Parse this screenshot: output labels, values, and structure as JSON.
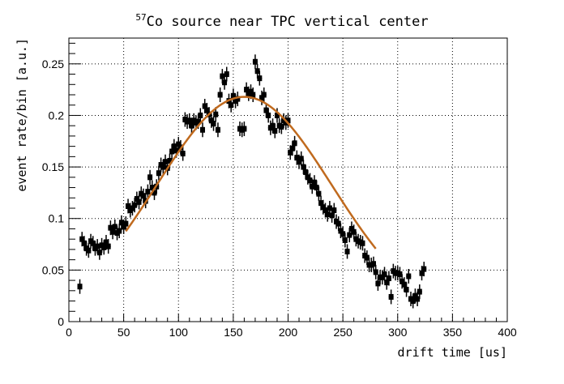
{
  "chart_data": {
    "type": "scatter",
    "title": {
      "superscript": "57",
      "text": "Co source near TPC vertical center"
    },
    "xlabel": "drift time [us]",
    "ylabel": "event rate/bin [a.u.]",
    "xlim": [
      0,
      400
    ],
    "ylim": [
      0,
      0.275
    ],
    "xticks": [
      "0",
      "50",
      "100",
      "150",
      "200",
      "250",
      "300",
      "350",
      "400"
    ],
    "yticks": [
      "0",
      "0.05",
      "0.1",
      "0.15",
      "0.2",
      "0.25"
    ],
    "grid": true,
    "marker_color": "#000000",
    "fit_color": "#c06a1e",
    "series": [
      {
        "points": [
          [
            10,
            0.034
          ],
          [
            12,
            0.08
          ],
          [
            14,
            0.076
          ],
          [
            16,
            0.071
          ],
          [
            18,
            0.069
          ],
          [
            20,
            0.078
          ],
          [
            22,
            0.076
          ],
          [
            24,
            0.071
          ],
          [
            26,
            0.073
          ],
          [
            28,
            0.067
          ],
          [
            30,
            0.074
          ],
          [
            32,
            0.072
          ],
          [
            34,
            0.077
          ],
          [
            36,
            0.073
          ],
          [
            38,
            0.091
          ],
          [
            40,
            0.087
          ],
          [
            42,
            0.092
          ],
          [
            44,
            0.086
          ],
          [
            46,
            0.088
          ],
          [
            48,
            0.096
          ],
          [
            50,
            0.092
          ],
          [
            52,
            0.095
          ],
          [
            54,
            0.112
          ],
          [
            56,
            0.108
          ],
          [
            58,
            0.11
          ],
          [
            60,
            0.113
          ],
          [
            62,
            0.119
          ],
          [
            64,
            0.116
          ],
          [
            66,
            0.124
          ],
          [
            68,
            0.122
          ],
          [
            70,
            0.117
          ],
          [
            72,
            0.126
          ],
          [
            74,
            0.14
          ],
          [
            76,
            0.13
          ],
          [
            78,
            0.125
          ],
          [
            80,
            0.131
          ],
          [
            82,
            0.144
          ],
          [
            84,
            0.152
          ],
          [
            86,
            0.15
          ],
          [
            88,
            0.155
          ],
          [
            90,
            0.149
          ],
          [
            92,
            0.156
          ],
          [
            94,
            0.165
          ],
          [
            96,
            0.17
          ],
          [
            98,
            0.166
          ],
          [
            100,
            0.172
          ],
          [
            102,
            0.169
          ],
          [
            104,
            0.163
          ],
          [
            106,
            0.196
          ],
          [
            108,
            0.194
          ],
          [
            110,
            0.195
          ],
          [
            112,
            0.19
          ],
          [
            114,
            0.195
          ],
          [
            116,
            0.193
          ],
          [
            118,
            0.194
          ],
          [
            120,
            0.2
          ],
          [
            122,
            0.186
          ],
          [
            124,
            0.209
          ],
          [
            126,
            0.205
          ],
          [
            128,
            0.201
          ],
          [
            130,
            0.195
          ],
          [
            132,
            0.192
          ],
          [
            134,
            0.201
          ],
          [
            136,
            0.186
          ],
          [
            138,
            0.22
          ],
          [
            140,
            0.238
          ],
          [
            142,
            0.232
          ],
          [
            144,
            0.24
          ],
          [
            146,
            0.214
          ],
          [
            148,
            0.21
          ],
          [
            150,
            0.219
          ],
          [
            152,
            0.214
          ],
          [
            154,
            0.216
          ],
          [
            156,
            0.187
          ],
          [
            158,
            0.186
          ],
          [
            160,
            0.187
          ],
          [
            162,
            0.225
          ],
          [
            164,
            0.221
          ],
          [
            166,
            0.223
          ],
          [
            168,
            0.22
          ],
          [
            170,
            0.252
          ],
          [
            172,
            0.243
          ],
          [
            174,
            0.236
          ],
          [
            176,
            0.217
          ],
          [
            178,
            0.22
          ],
          [
            180,
            0.205
          ],
          [
            182,
            0.2
          ],
          [
            184,
            0.188
          ],
          [
            186,
            0.19
          ],
          [
            188,
            0.185
          ],
          [
            190,
            0.2
          ],
          [
            192,
            0.19
          ],
          [
            194,
            0.189
          ],
          [
            196,
            0.195
          ],
          [
            198,
            0.193
          ],
          [
            200,
            0.195
          ],
          [
            202,
            0.164
          ],
          [
            204,
            0.168
          ],
          [
            206,
            0.173
          ],
          [
            208,
            0.159
          ],
          [
            210,
            0.155
          ],
          [
            212,
            0.158
          ],
          [
            214,
            0.15
          ],
          [
            216,
            0.145
          ],
          [
            218,
            0.14
          ],
          [
            220,
            0.137
          ],
          [
            222,
            0.131
          ],
          [
            224,
            0.135
          ],
          [
            226,
            0.13
          ],
          [
            228,
            0.124
          ],
          [
            230,
            0.115
          ],
          [
            232,
            0.111
          ],
          [
            234,
            0.108
          ],
          [
            236,
            0.104
          ],
          [
            238,
            0.11
          ],
          [
            240,
            0.103
          ],
          [
            242,
            0.108
          ],
          [
            244,
            0.097
          ],
          [
            246,
            0.095
          ],
          [
            248,
            0.088
          ],
          [
            250,
            0.085
          ],
          [
            252,
            0.079
          ],
          [
            254,
            0.068
          ],
          [
            256,
            0.084
          ],
          [
            258,
            0.09
          ],
          [
            260,
            0.087
          ],
          [
            262,
            0.08
          ],
          [
            264,
            0.078
          ],
          [
            266,
            0.077
          ],
          [
            268,
            0.076
          ],
          [
            270,
            0.064
          ],
          [
            272,
            0.062
          ],
          [
            274,
            0.055
          ],
          [
            276,
            0.055
          ],
          [
            278,
            0.056
          ],
          [
            280,
            0.048
          ],
          [
            282,
            0.037
          ],
          [
            284,
            0.043
          ],
          [
            286,
            0.043
          ],
          [
            288,
            0.046
          ],
          [
            290,
            0.038
          ],
          [
            292,
            0.042
          ],
          [
            294,
            0.024
          ],
          [
            296,
            0.049
          ],
          [
            298,
            0.047
          ],
          [
            300,
            0.047
          ],
          [
            302,
            0.046
          ],
          [
            304,
            0.039
          ],
          [
            306,
            0.036
          ],
          [
            308,
            0.031
          ],
          [
            310,
            0.044
          ],
          [
            312,
            0.022
          ],
          [
            314,
            0.02
          ],
          [
            316,
            0.025
          ],
          [
            318,
            0.022
          ],
          [
            320,
            0.029
          ],
          [
            322,
            0.047
          ],
          [
            324,
            0.051
          ]
        ]
      }
    ],
    "fit": {
      "x_range": [
        52,
        280
      ],
      "gaussian": {
        "amplitude": 0.218,
        "mean": 160,
        "sigma": 80
      }
    }
  }
}
